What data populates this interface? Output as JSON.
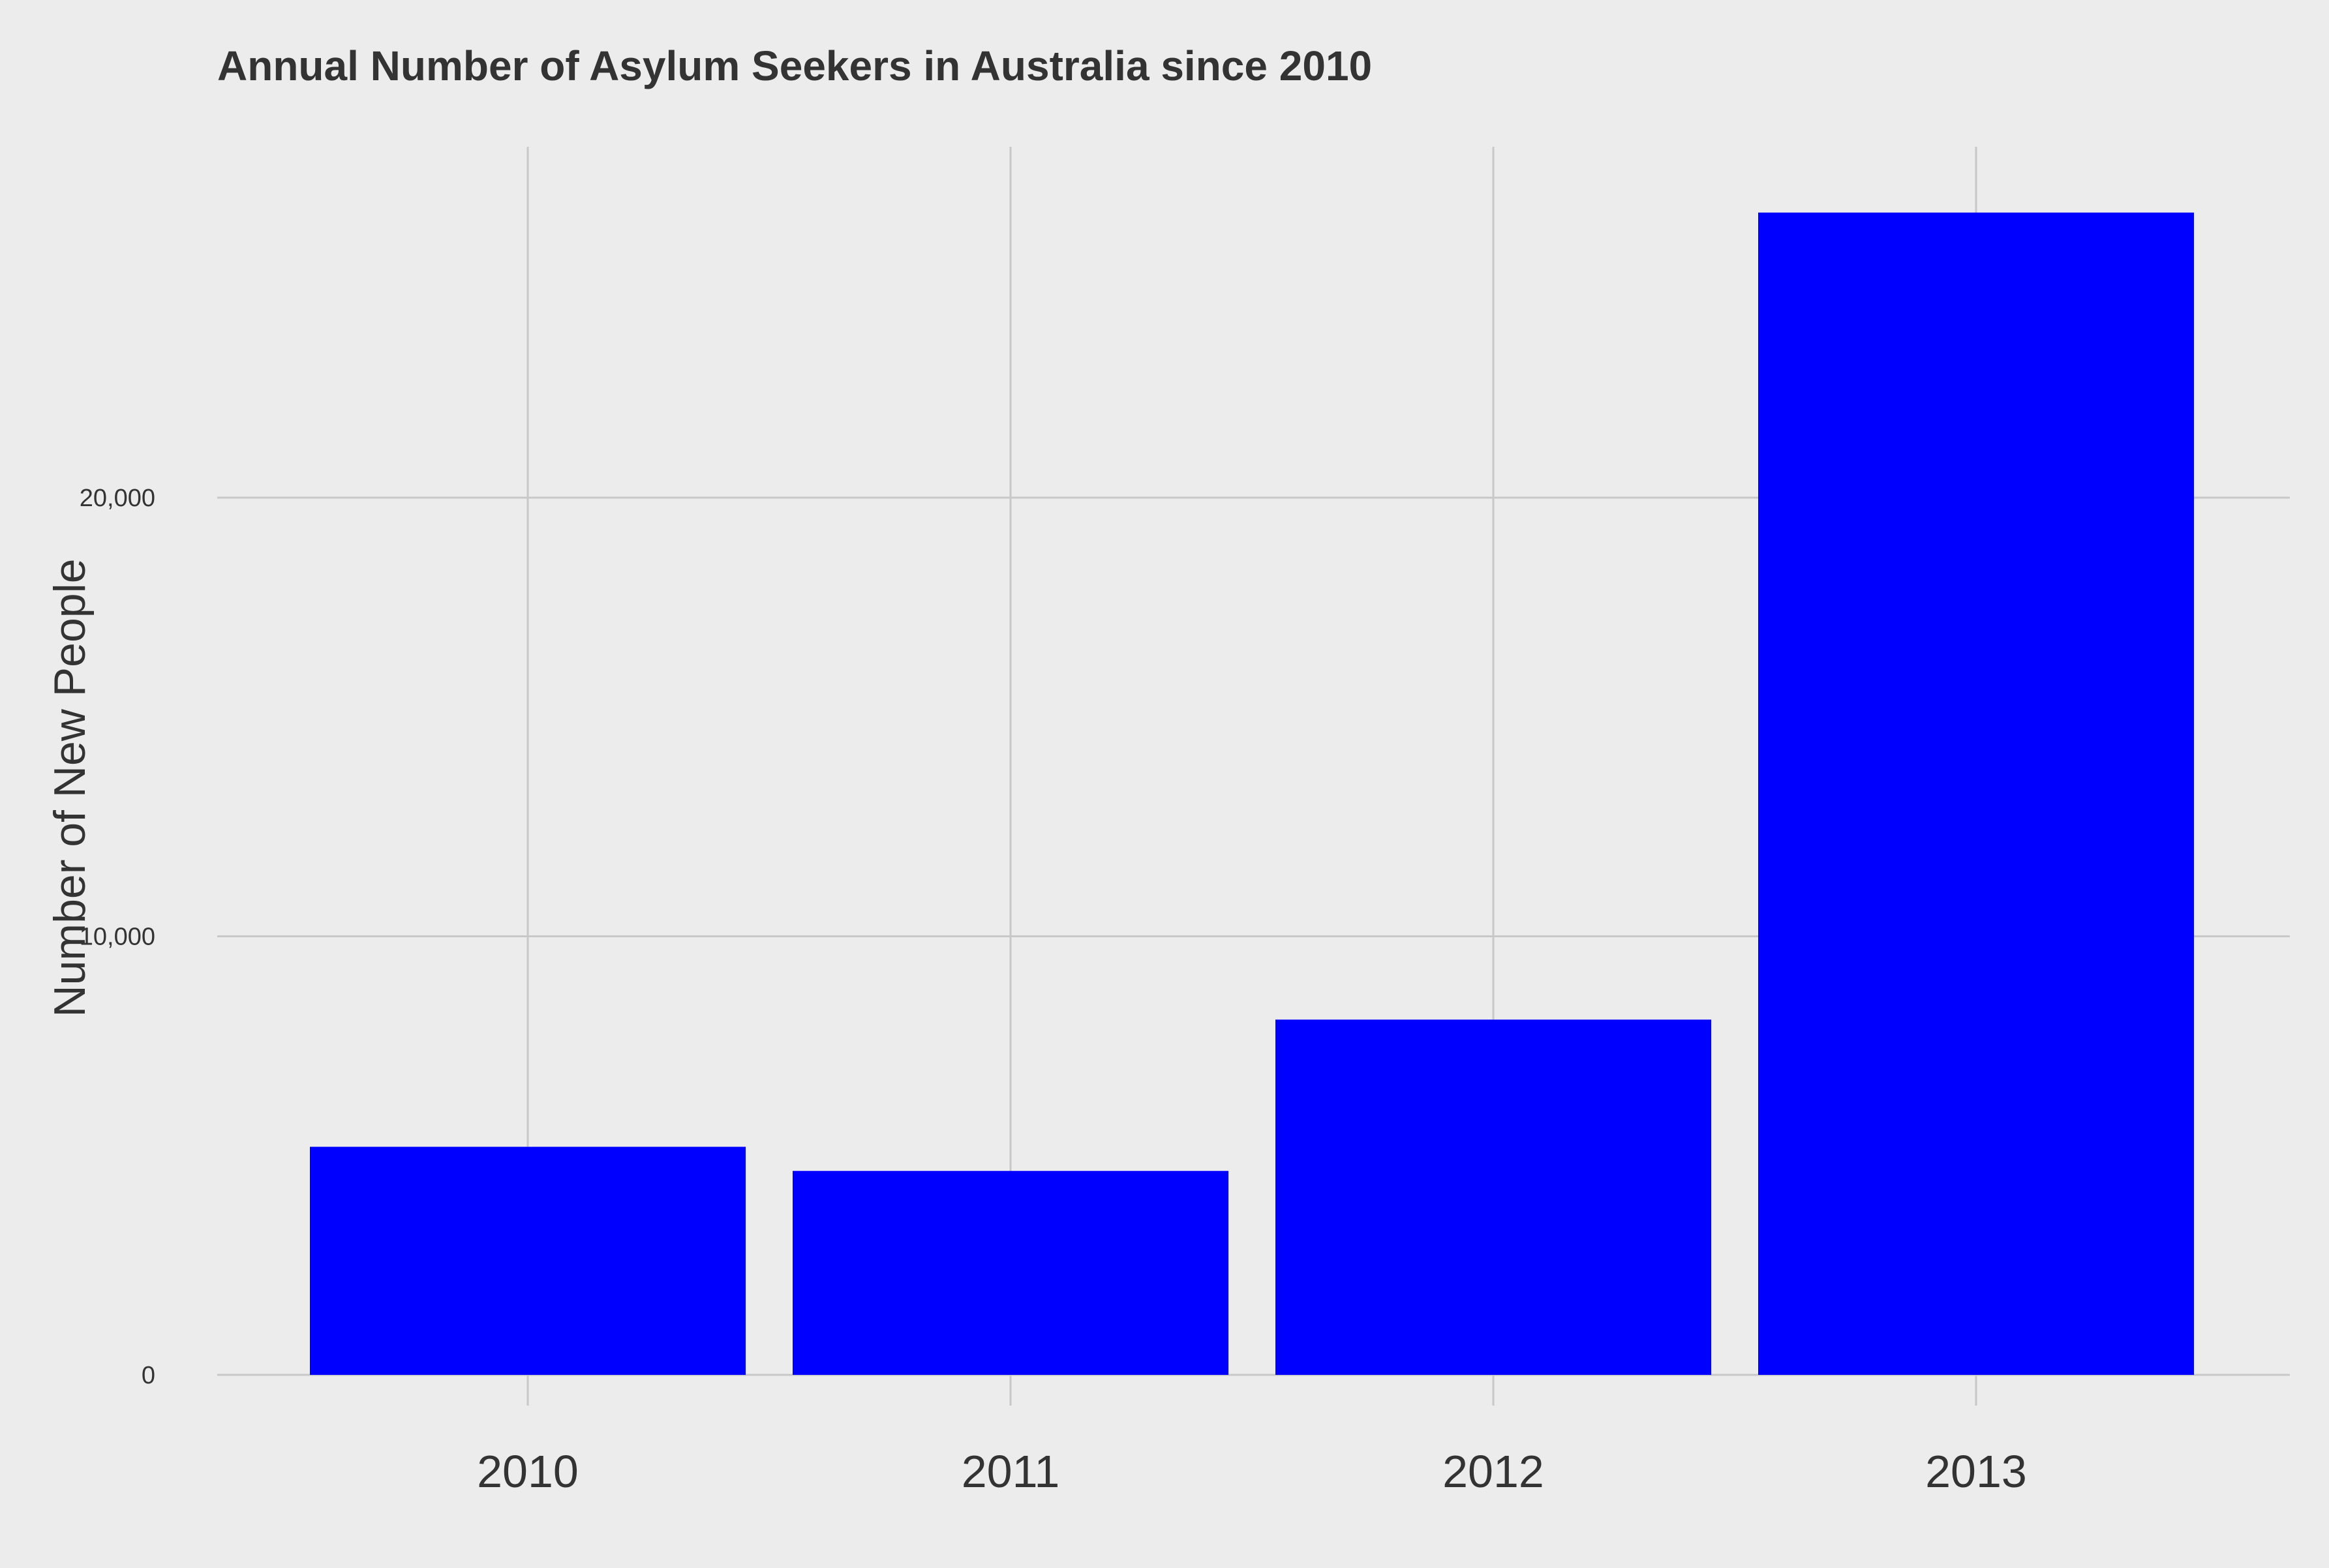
{
  "chart_data": {
    "type": "bar",
    "title": "Annual Number of Asylum Seekers in Australia since 2010",
    "xlabel": "",
    "ylabel": "Number of New People",
    "categories": [
      "2010",
      "2011",
      "2012",
      "2013"
    ],
    "values": [
      5200,
      4650,
      8100,
      26500
    ],
    "ylim": [
      -700,
      28000
    ],
    "yticks": [
      0,
      10000,
      20000
    ],
    "ytick_labels": [
      "0",
      "10,000",
      "20,000"
    ],
    "bar_color": "#0000ff",
    "background_color": "#ececec",
    "grid": true,
    "legend": "none"
  }
}
